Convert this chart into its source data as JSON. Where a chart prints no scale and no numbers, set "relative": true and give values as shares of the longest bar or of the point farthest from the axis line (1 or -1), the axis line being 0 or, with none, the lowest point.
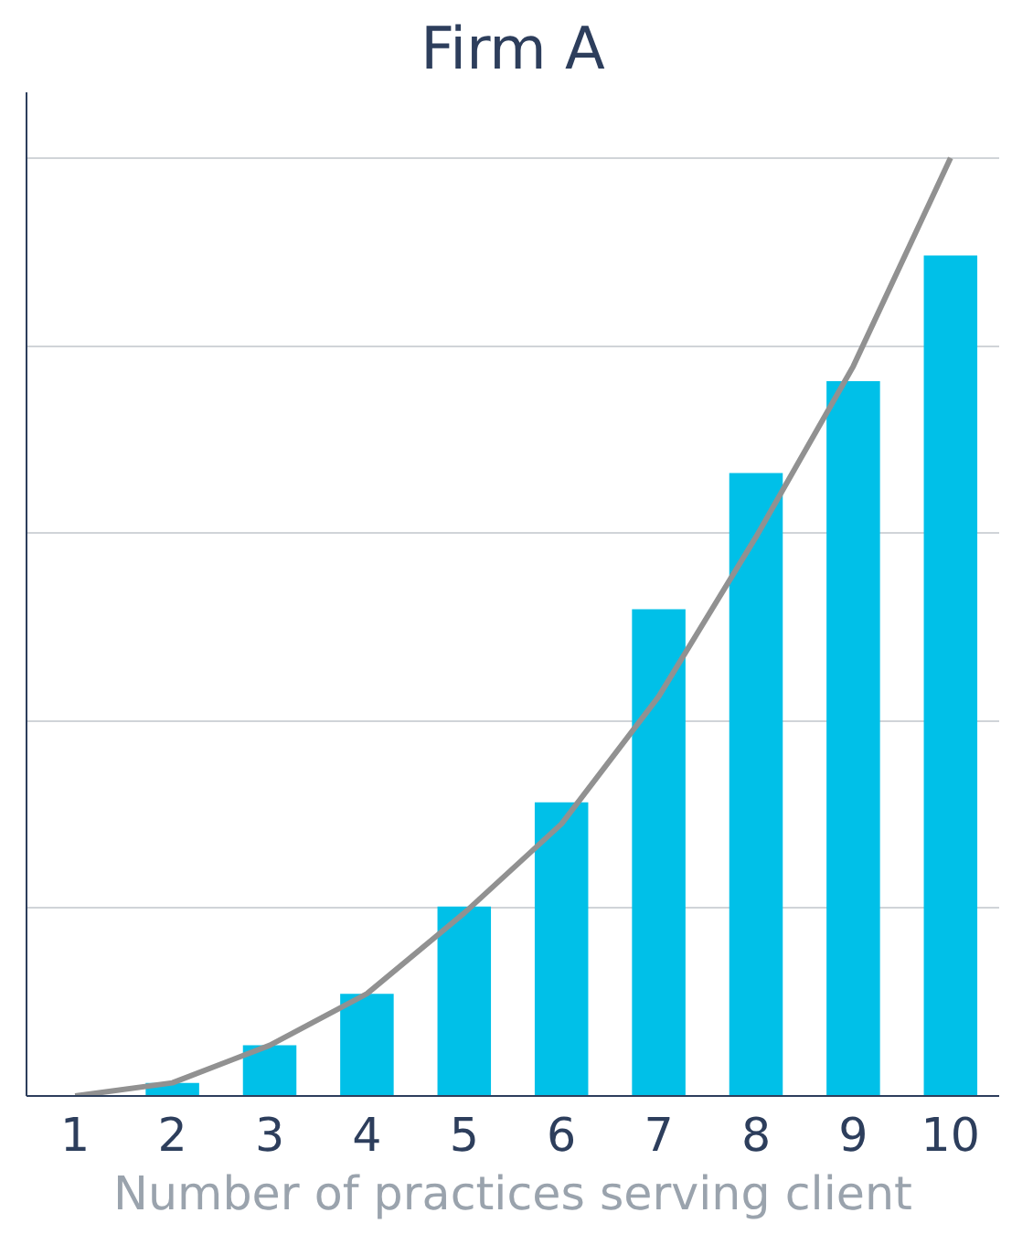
{
  "chart_data": {
    "type": "bar",
    "title": "Firm A",
    "xlabel": "Number of practices serving client",
    "relative": true,
    "grid": "y",
    "categories": [
      "1",
      "2",
      "3",
      "4",
      "5",
      "6",
      "7",
      "8",
      "9",
      "10"
    ],
    "series": [
      {
        "color": "#00c0e8",
        "values": [
          0,
          0.014,
          0.054,
          0.109,
          0.202,
          0.313,
          0.519,
          0.664,
          0.762,
          0.896
        ]
      },
      {
        "type": "line",
        "color": "#919191",
        "values": [
          0,
          0.014,
          0.054,
          0.109,
          0.195,
          0.29,
          0.426,
          0.596,
          0.778,
          1.0
        ]
      }
    ]
  }
}
